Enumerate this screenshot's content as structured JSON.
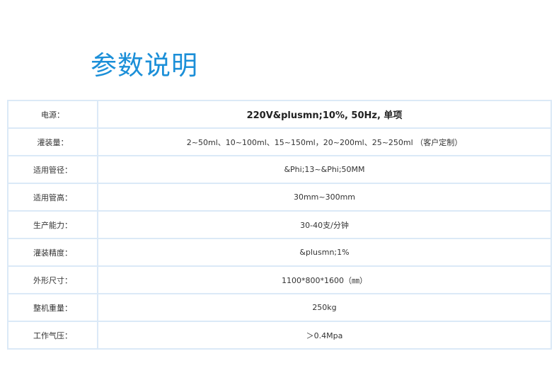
{
  "title": "参数说明",
  "specs": [
    {
      "label": "电源：",
      "value": "220V&plusmn;10%, 50Hz, 单项"
    },
    {
      "label": "灌装量：",
      "value": "2~50ml、10~100ml、15~150ml，20~200ml、25~250ml （客户定制）"
    },
    {
      "label": "适用管径：",
      "value": "&Phi;13~&Phi;50MM"
    },
    {
      "label": "适用管高：",
      "value": "30mm~300mm"
    },
    {
      "label": "生产能力：",
      "value": "30-40支/分钟"
    },
    {
      "label": "灌装精度：",
      "value": "&plusmn;1%"
    },
    {
      "label": "外形尺寸：",
      "value": "1100*800*1600（㎜）"
    },
    {
      "label": "整机重量：",
      "value": "250kg"
    },
    {
      "label": "工作气压：",
      "value": "＞0.4Mpa"
    }
  ]
}
